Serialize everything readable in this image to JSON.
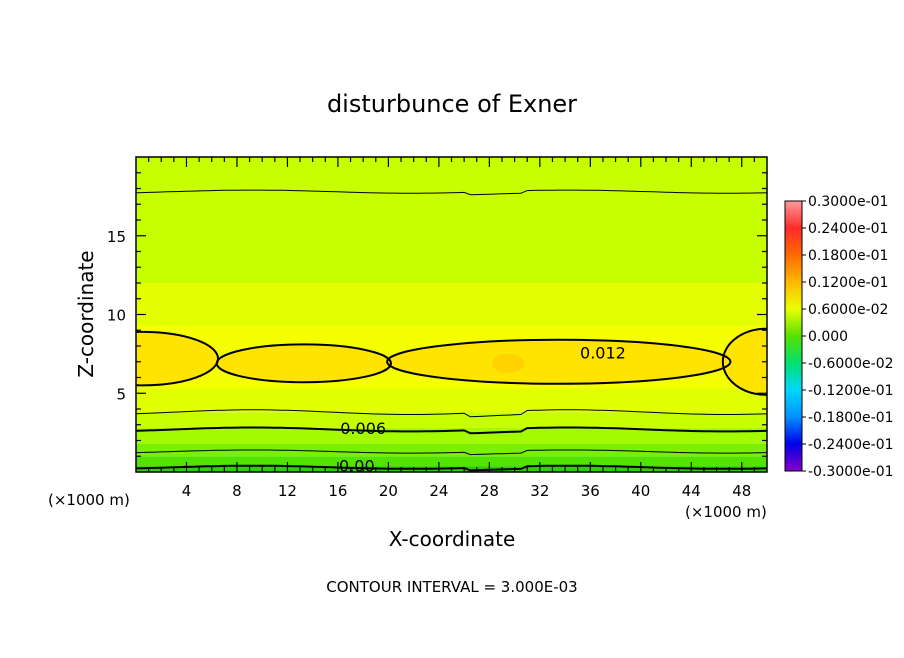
{
  "chart_data": {
    "type": "heatmap",
    "title": "disturbunce of Exner",
    "xlabel": "X-coordinate",
    "ylabel": "Z-coordinate",
    "x_unit_left": "(×1000 m)",
    "x_unit_right": "(×1000 m)",
    "xlim": [
      0,
      50
    ],
    "ylim": [
      0,
      20
    ],
    "x_ticks": [
      4,
      8,
      12,
      16,
      20,
      24,
      28,
      32,
      36,
      40,
      44,
      48
    ],
    "x_tick_labels": [
      "4",
      "8",
      "12",
      "16",
      "20",
      "24",
      "28",
      "32",
      "36",
      "40",
      "44",
      "48"
    ],
    "y_ticks": [
      5,
      10,
      15
    ],
    "y_tick_labels": [
      "5",
      "10",
      "15"
    ],
    "contour_labels": [
      {
        "text": "0.012",
        "x": 37.0,
        "y": 7.6
      },
      {
        "text": "0.006",
        "x": 18.0,
        "y": 2.8
      },
      {
        "text": "0.00",
        "x": 17.5,
        "y": 0.4
      }
    ],
    "contour_interval_text": "CONTOUR INTERVAL = 3.000E-03",
    "colorbar": {
      "labels": [
        "0.3000e-01",
        "0.2400e-01",
        "0.1800e-01",
        "0.1200e-01",
        "0.6000e-02",
        "0.000",
        "-0.6000e-02",
        "-0.1200e-01",
        "-0.1800e-01",
        "-0.2400e-01",
        "-0.3000e-01"
      ],
      "values": [
        0.03,
        0.024,
        0.018,
        0.012,
        0.006,
        0.0,
        -0.006,
        -0.012,
        -0.018,
        -0.024,
        -0.03
      ],
      "colors_top_to_bottom": [
        "#ff9a9a",
        "#ff2a2a",
        "#ff6a00",
        "#ffb800",
        "#eaff00",
        "#58e000",
        "#00e070",
        "#00d8ff",
        "#0090ff",
        "#0000e8",
        "#8a00c8"
      ]
    },
    "field_colors": {
      "near_zero": "#2ed00a",
      "low": "#7af000",
      "mid": "#c8ff00",
      "high": "#f4ff00",
      "core": "#ffe400",
      "peak": "#ffd200"
    }
  }
}
